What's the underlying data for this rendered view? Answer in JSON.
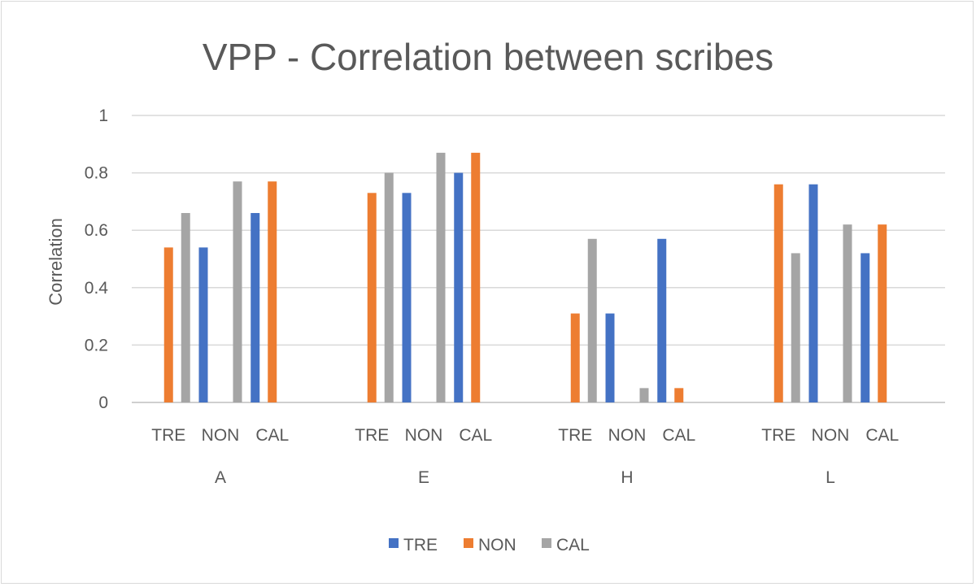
{
  "chart_data": {
    "type": "bar",
    "title": "VPP - Correlation between scribes",
    "xlabel": "",
    "ylabel": "Correlation",
    "ylim": [
      0,
      1
    ],
    "yticks": [
      "0",
      "0.2",
      "0.4",
      "0.6",
      "0.8",
      "1"
    ],
    "grid": true,
    "legend_position": "bottom",
    "groups": [
      {
        "name": "A",
        "categories": [
          "TRE",
          "NON",
          "CAL"
        ]
      },
      {
        "name": "E",
        "categories": [
          "TRE",
          "NON",
          "CAL"
        ]
      },
      {
        "name": "H",
        "categories": [
          "TRE",
          "NON",
          "CAL"
        ]
      },
      {
        "name": "L",
        "categories": [
          "TRE",
          "NON",
          "CAL"
        ]
      }
    ],
    "series": [
      {
        "name": "TRE",
        "color": "#4472c4",
        "values": [
          null,
          0.54,
          0.66,
          null,
          0.73,
          0.8,
          null,
          0.31,
          0.57,
          null,
          0.76,
          0.52
        ]
      },
      {
        "name": "NON",
        "color": "#ed7d31",
        "values": [
          0.54,
          null,
          0.77,
          0.73,
          null,
          0.87,
          0.31,
          null,
          0.05,
          0.76,
          null,
          0.62
        ]
      },
      {
        "name": "CAL",
        "color": "#a5a5a5",
        "values": [
          0.66,
          0.77,
          null,
          0.8,
          0.87,
          null,
          0.57,
          0.05,
          null,
          0.52,
          0.62,
          null
        ]
      }
    ]
  }
}
